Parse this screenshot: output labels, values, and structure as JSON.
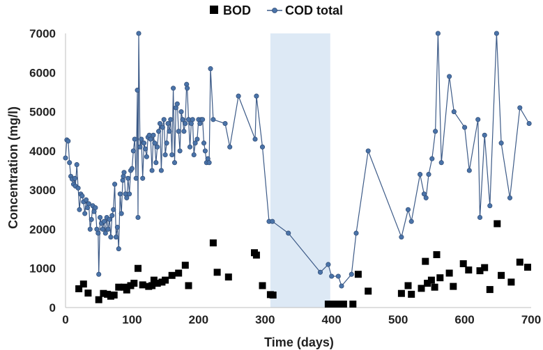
{
  "chart_data": {
    "type": "scatter",
    "xlabel": "Time (days)",
    "ylabel": "Concentration (mg/l)",
    "xlim": [
      0,
      700
    ],
    "ylim": [
      0,
      7000
    ],
    "xticks": [
      0,
      100,
      200,
      300,
      400,
      500,
      600,
      700
    ],
    "yticks": [
      0,
      1000,
      2000,
      3000,
      4000,
      5000,
      6000,
      7000
    ],
    "grid": false,
    "legend_position": "top",
    "shaded_region": {
      "x": [
        308,
        398
      ],
      "color": "#dde9f5"
    },
    "series": [
      {
        "name": "BOD",
        "type": "scatter",
        "marker": "square",
        "color": "#000000",
        "points": [
          [
            20,
            480
          ],
          [
            27,
            600
          ],
          [
            34,
            370
          ],
          [
            50,
            200
          ],
          [
            57,
            360
          ],
          [
            63,
            340
          ],
          [
            68,
            290
          ],
          [
            73,
            320
          ],
          [
            80,
            520
          ],
          [
            88,
            520
          ],
          [
            92,
            450
          ],
          [
            98,
            560
          ],
          [
            103,
            620
          ],
          [
            109,
            1000
          ],
          [
            116,
            580
          ],
          [
            125,
            540
          ],
          [
            130,
            560
          ],
          [
            133,
            700
          ],
          [
            138,
            620
          ],
          [
            145,
            650
          ],
          [
            150,
            700
          ],
          [
            160,
            820
          ],
          [
            170,
            880
          ],
          [
            180,
            1080
          ],
          [
            185,
            560
          ],
          [
            222,
            1650
          ],
          [
            228,
            900
          ],
          [
            245,
            780
          ],
          [
            284,
            1400
          ],
          [
            287,
            1340
          ],
          [
            296,
            560
          ],
          [
            308,
            330
          ],
          [
            312,
            320
          ],
          [
            395,
            80
          ],
          [
            402,
            70
          ],
          [
            411,
            60
          ],
          [
            418,
            40
          ],
          [
            432,
            60
          ],
          [
            440,
            850
          ],
          [
            455,
            420
          ],
          [
            505,
            360
          ],
          [
            515,
            560
          ],
          [
            520,
            340
          ],
          [
            535,
            490
          ],
          [
            541,
            1180
          ],
          [
            544,
            620
          ],
          [
            550,
            700
          ],
          [
            555,
            520
          ],
          [
            558,
            1350
          ],
          [
            563,
            760
          ],
          [
            577,
            880
          ],
          [
            583,
            540
          ],
          [
            598,
            1120
          ],
          [
            606,
            960
          ],
          [
            623,
            940
          ],
          [
            630,
            1020
          ],
          [
            638,
            460
          ],
          [
            649,
            2140
          ],
          [
            655,
            820
          ],
          [
            670,
            650
          ],
          [
            683,
            1160
          ],
          [
            697,
            1030
          ]
        ]
      },
      {
        "name": "COD total",
        "type": "line",
        "marker": "circle",
        "color": "#3c5a87",
        "points": [
          [
            0,
            3820
          ],
          [
            2,
            4280
          ],
          [
            4,
            4250
          ],
          [
            6,
            3700
          ],
          [
            8,
            3350
          ],
          [
            10,
            3280
          ],
          [
            12,
            3150
          ],
          [
            14,
            3300
          ],
          [
            15,
            3100
          ],
          [
            17,
            3650
          ],
          [
            19,
            3050
          ],
          [
            21,
            2500
          ],
          [
            23,
            2900
          ],
          [
            25,
            2850
          ],
          [
            27,
            2700
          ],
          [
            29,
            2400
          ],
          [
            31,
            2750
          ],
          [
            33,
            2550
          ],
          [
            35,
            2650
          ],
          [
            37,
            2000
          ],
          [
            39,
            2250
          ],
          [
            41,
            2600
          ],
          [
            43,
            2450
          ],
          [
            45,
            2550
          ],
          [
            47,
            2000
          ],
          [
            49,
            1900
          ],
          [
            50,
            850
          ],
          [
            52,
            2300
          ],
          [
            54,
            2150
          ],
          [
            56,
            2000
          ],
          [
            58,
            2200
          ],
          [
            60,
            1900
          ],
          [
            62,
            2300
          ],
          [
            64,
            2000
          ],
          [
            66,
            2250
          ],
          [
            68,
            1800
          ],
          [
            70,
            2350
          ],
          [
            72,
            2500
          ],
          [
            74,
            3150
          ],
          [
            76,
            1800
          ],
          [
            78,
            2050
          ],
          [
            80,
            1500
          ],
          [
            82,
            2900
          ],
          [
            84,
            2400
          ],
          [
            86,
            3250
          ],
          [
            87,
            3350
          ],
          [
            88,
            3450
          ],
          [
            90,
            2900
          ],
          [
            92,
            2800
          ],
          [
            94,
            3300
          ],
          [
            96,
            2900
          ],
          [
            98,
            3500
          ],
          [
            100,
            3550
          ],
          [
            102,
            4000
          ],
          [
            104,
            4300
          ],
          [
            106,
            3300
          ],
          [
            108,
            5550
          ],
          [
            109,
            2300
          ],
          [
            110,
            7000
          ],
          [
            112,
            4100
          ],
          [
            114,
            4300
          ],
          [
            116,
            3300
          ],
          [
            118,
            4200
          ],
          [
            120,
            4050
          ],
          [
            122,
            3850
          ],
          [
            124,
            4350
          ],
          [
            126,
            4400
          ],
          [
            128,
            4300
          ],
          [
            130,
            3500
          ],
          [
            132,
            4400
          ],
          [
            134,
            4200
          ],
          [
            136,
            3700
          ],
          [
            138,
            4100
          ],
          [
            140,
            4500
          ],
          [
            142,
            4700
          ],
          [
            144,
            3500
          ],
          [
            146,
            4600
          ],
          [
            148,
            4800
          ],
          [
            150,
            3900
          ],
          [
            152,
            4200
          ],
          [
            154,
            4700
          ],
          [
            156,
            4500
          ],
          [
            158,
            4800
          ],
          [
            160,
            3900
          ],
          [
            162,
            5600
          ],
          [
            164,
            3700
          ],
          [
            166,
            5100
          ],
          [
            168,
            5200
          ],
          [
            170,
            4500
          ],
          [
            172,
            4000
          ],
          [
            174,
            5000
          ],
          [
            176,
            4800
          ],
          [
            178,
            4500
          ],
          [
            180,
            4700
          ],
          [
            182,
            5700
          ],
          [
            183,
            5600
          ],
          [
            185,
            4800
          ],
          [
            187,
            4100
          ],
          [
            189,
            4700
          ],
          [
            191,
            4800
          ],
          [
            193,
            3900
          ],
          [
            195,
            4200
          ],
          [
            198,
            4300
          ],
          [
            200,
            4800
          ],
          [
            202,
            4700
          ],
          [
            204,
            4800
          ],
          [
            206,
            4800
          ],
          [
            208,
            4200
          ],
          [
            210,
            4000
          ],
          [
            212,
            3700
          ],
          [
            214,
            3800
          ],
          [
            216,
            3700
          ],
          [
            218,
            6100
          ],
          [
            222,
            4800
          ],
          [
            240,
            4700
          ],
          [
            247,
            4100
          ],
          [
            260,
            5400
          ],
          [
            285,
            4300
          ],
          [
            287,
            5400
          ],
          [
            296,
            4100
          ],
          [
            306,
            2200
          ],
          [
            311,
            2200
          ],
          [
            335,
            1900
          ],
          [
            383,
            900
          ],
          [
            395,
            1100
          ],
          [
            400,
            800
          ],
          [
            410,
            800
          ],
          [
            415,
            550
          ],
          [
            430,
            850
          ],
          [
            437,
            1900
          ],
          [
            455,
            4000
          ],
          [
            505,
            1800
          ],
          [
            515,
            2500
          ],
          [
            520,
            2200
          ],
          [
            533,
            3400
          ],
          [
            539,
            2900
          ],
          [
            542,
            2800
          ],
          [
            546,
            3400
          ],
          [
            551,
            3800
          ],
          [
            556,
            4500
          ],
          [
            560,
            7000
          ],
          [
            565,
            3700
          ],
          [
            577,
            5900
          ],
          [
            584,
            5000
          ],
          [
            600,
            4600
          ],
          [
            607,
            3500
          ],
          [
            620,
            4800
          ],
          [
            623,
            2300
          ],
          [
            630,
            4400
          ],
          [
            638,
            2600
          ],
          [
            648,
            7000
          ],
          [
            655,
            4200
          ],
          [
            668,
            2800
          ],
          [
            683,
            5100
          ],
          [
            697,
            4700
          ]
        ]
      }
    ]
  }
}
